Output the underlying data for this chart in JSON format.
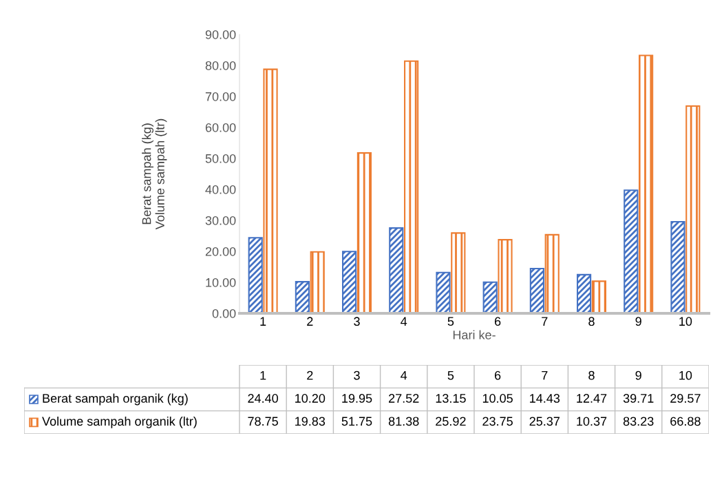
{
  "chart_data": {
    "type": "bar",
    "xlabel": "Hari ke-",
    "ylabel": "Berat sampah (kg)\nVolume sampah (ltr)",
    "categories": [
      "1",
      "2",
      "3",
      "4",
      "5",
      "6",
      "7",
      "8",
      "9",
      "10"
    ],
    "series": [
      {
        "name": "Berat sampah organik (kg)",
        "color": "#4472c4",
        "values": [
          24.4,
          10.2,
          19.95,
          27.52,
          13.15,
          10.05,
          14.43,
          12.47,
          39.71,
          29.57
        ],
        "value_labels": [
          "24.40",
          "10.20",
          "19.95",
          "27.52",
          "13.15",
          "10.05",
          "14.43",
          "12.47",
          "39.71",
          "29.57"
        ]
      },
      {
        "name": "Volume sampah organik (ltr)",
        "color": "#ed7d31",
        "values": [
          78.75,
          19.83,
          51.75,
          81.38,
          25.92,
          23.75,
          25.37,
          10.37,
          83.23,
          66.88
        ],
        "value_labels": [
          "78.75",
          "19.83",
          "51.75",
          "81.38",
          "25.92",
          "23.75",
          "25.37",
          "10.37",
          "83.23",
          "66.88"
        ]
      }
    ],
    "ylim": [
      0,
      90
    ],
    "yticks": [
      {
        "value": 0,
        "label": "0.00"
      },
      {
        "value": 10,
        "label": "10.00"
      },
      {
        "value": 20,
        "label": "20.00"
      },
      {
        "value": 30,
        "label": "30.00"
      },
      {
        "value": 40,
        "label": "40.00"
      },
      {
        "value": 50,
        "label": "50.00"
      },
      {
        "value": 60,
        "label": "60.00"
      },
      {
        "value": 70,
        "label": "70.00"
      },
      {
        "value": 80,
        "label": "80.00"
      },
      {
        "value": 90,
        "label": "90.00"
      }
    ],
    "grid": false,
    "legend": "bottom"
  }
}
